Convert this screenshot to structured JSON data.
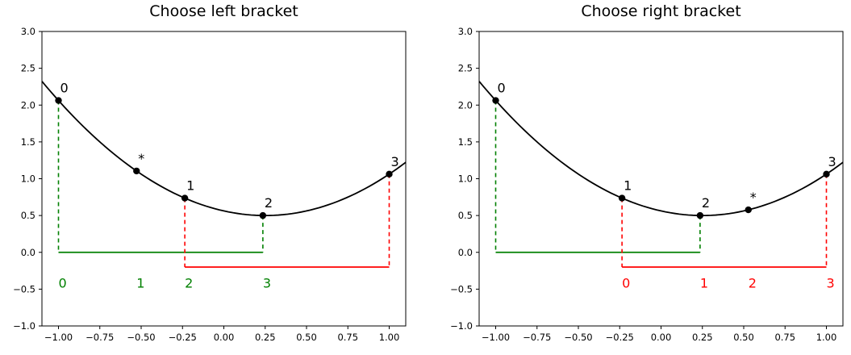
{
  "figure": {
    "background": "#ffffff",
    "axes_color": "#000000"
  },
  "colors": {
    "curve": "#000000",
    "marker": "#000000",
    "green_bracket": "#008000",
    "red_bracket": "#ff0000"
  },
  "chart_data": [
    {
      "type": "line",
      "title": "Choose left bracket",
      "xlim": [
        -1.1,
        1.1
      ],
      "ylim": [
        -1.0,
        3.0
      ],
      "xtick_values": [
        -1.0,
        -0.75,
        -0.5,
        -0.25,
        0.0,
        0.25,
        0.5,
        0.75,
        1.0
      ],
      "xtick_labels": [
        "−1.00",
        "−0.75",
        "−0.50",
        "−0.25",
        "0.00",
        "0.25",
        "0.50",
        "0.75",
        "1.00"
      ],
      "ytick_values": [
        -1.0,
        -0.5,
        0.0,
        0.5,
        1.0,
        1.5,
        2.0,
        2.5,
        3.0
      ],
      "ytick_labels": [
        "−1.0",
        "−0.5",
        "0.0",
        "0.5",
        "1.0",
        "1.5",
        "2.0",
        "2.5",
        "3.0"
      ],
      "curve": {
        "expression": "f(x) = (x − 0.25)² + 0.5",
        "a": 1.0,
        "x_min": 0.25,
        "y_min": 0.5
      },
      "points": [
        {
          "label": "0",
          "x": -1.0,
          "y": 2.0625
        },
        {
          "label": "*",
          "x": -0.528,
          "y": 1.1053
        },
        {
          "label": "1",
          "x": -0.236,
          "y": 0.7362
        },
        {
          "label": "2",
          "x": 0.236,
          "y": 0.5002
        },
        {
          "label": "3",
          "x": 1.0,
          "y": 1.0625
        }
      ],
      "brackets": [
        {
          "name": "green-bracket",
          "color": "#008000",
          "line_y": 0.0,
          "x_from": -1.0,
          "x_to": 0.236,
          "drops": [
            {
              "x": -1.0,
              "y_top": 2.0625
            },
            {
              "x": 0.236,
              "y_top": 0.5002
            }
          ]
        },
        {
          "name": "red-bracket",
          "color": "#ff0000",
          "line_y": -0.2,
          "x_from": -0.236,
          "x_to": 1.0,
          "drops": [
            {
              "x": -0.236,
              "y_top": 0.7362
            },
            {
              "x": 1.0,
              "y_top": 1.0625
            }
          ]
        }
      ],
      "index_labels": {
        "color": "#008000",
        "y": -0.5,
        "items": [
          {
            "text": "0",
            "x": -1.0
          },
          {
            "text": "1",
            "x": -0.528
          },
          {
            "text": "2",
            "x": -0.236
          },
          {
            "text": "3",
            "x": 0.236
          }
        ]
      }
    },
    {
      "type": "line",
      "title": "Choose right bracket",
      "xlim": [
        -1.1,
        1.1
      ],
      "ylim": [
        -1.0,
        3.0
      ],
      "xtick_values": [
        -1.0,
        -0.75,
        -0.5,
        -0.25,
        0.0,
        0.25,
        0.5,
        0.75,
        1.0
      ],
      "xtick_labels": [
        "−1.00",
        "−0.75",
        "−0.50",
        "−0.25",
        "0.00",
        "0.25",
        "0.50",
        "0.75",
        "1.00"
      ],
      "ytick_values": [
        -1.0,
        -0.5,
        0.0,
        0.5,
        1.0,
        1.5,
        2.0,
        2.5,
        3.0
      ],
      "ytick_labels": [
        "−1.0",
        "−0.5",
        "0.0",
        "0.5",
        "1.0",
        "1.5",
        "2.0",
        "2.5",
        "3.0"
      ],
      "curve": {
        "expression": "f(x) = (x − 0.25)² + 0.5",
        "a": 1.0,
        "x_min": 0.25,
        "y_min": 0.5
      },
      "points": [
        {
          "label": "0",
          "x": -1.0,
          "y": 2.0625
        },
        {
          "label": "1",
          "x": -0.236,
          "y": 0.7362
        },
        {
          "label": "2",
          "x": 0.236,
          "y": 0.5002
        },
        {
          "label": "*",
          "x": 0.528,
          "y": 0.5773
        },
        {
          "label": "3",
          "x": 1.0,
          "y": 1.0625
        }
      ],
      "brackets": [
        {
          "name": "green-bracket",
          "color": "#008000",
          "line_y": 0.0,
          "x_from": -1.0,
          "x_to": 0.236,
          "drops": [
            {
              "x": -1.0,
              "y_top": 2.0625
            },
            {
              "x": 0.236,
              "y_top": 0.5002
            }
          ]
        },
        {
          "name": "red-bracket",
          "color": "#ff0000",
          "line_y": -0.2,
          "x_from": -0.236,
          "x_to": 1.0,
          "drops": [
            {
              "x": -0.236,
              "y_top": 0.7362
            },
            {
              "x": 1.0,
              "y_top": 1.0625
            }
          ]
        }
      ],
      "index_labels": {
        "color": "#ff0000",
        "y": -0.5,
        "items": [
          {
            "text": "0",
            "x": -0.236
          },
          {
            "text": "1",
            "x": 0.236
          },
          {
            "text": "2",
            "x": 0.528
          },
          {
            "text": "3",
            "x": 1.0
          }
        ]
      }
    }
  ]
}
